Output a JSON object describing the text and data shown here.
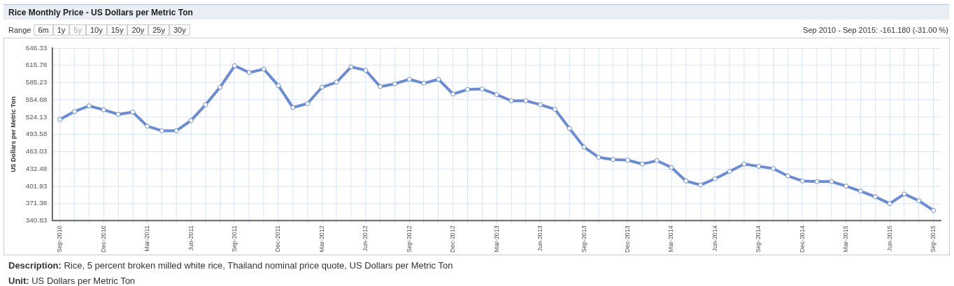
{
  "chart_data": {
    "type": "line",
    "title": "Rice Monthly Price - US Dollars per Metric Ton",
    "ylabel": "US Dollars per Metric Ton",
    "annotations": [
      "Range",
      "6m",
      "1y",
      "5y",
      "10y",
      "15y",
      "20y",
      "25y",
      "30y",
      "Sep 2010 - Sep 2015: -161.180 (-31.00 %)",
      "Description: Rice, 5 percent broken milled white rice, Thailand nominal price quote, US Dollars per Metric Ton",
      "Unit: US Dollars per Metric Ton"
    ],
    "categories": [
      "Sep-2010",
      null,
      null,
      "Dec-2010",
      null,
      null,
      "Mar-2011",
      null,
      null,
      "Jun-2011",
      null,
      null,
      "Sep-2011",
      null,
      null,
      "Dec-2011",
      null,
      null,
      "Mar-2012",
      null,
      null,
      "Jun-2012",
      null,
      null,
      "Sep-2012",
      null,
      null,
      "Dec-2012",
      null,
      null,
      "Mar-2013",
      null,
      null,
      "Jun-2013",
      null,
      null,
      "Sep-2013",
      null,
      null,
      "Dec-2013",
      null,
      null,
      "Mar-2014",
      null,
      null,
      "Jun-2014",
      null,
      null,
      "Sep-2014",
      null,
      null,
      "Dec-2014",
      null,
      null,
      "Mar-2015",
      null,
      null,
      "Jun-2015",
      null,
      null,
      "Sep-2015"
    ],
    "series": [
      {
        "color": "#6a8cd8",
        "values": [
          520,
          534,
          544,
          537,
          529,
          533,
          508,
          500,
          500,
          518,
          546,
          577,
          615,
          603,
          609,
          580,
          541,
          548,
          577,
          586,
          613,
          607,
          578,
          583,
          591,
          584,
          591,
          565,
          573,
          574,
          564,
          553,
          553,
          546,
          538,
          504,
          471,
          453,
          449,
          448,
          441,
          447,
          435,
          411,
          404,
          415,
          428,
          441,
          437,
          433,
          420,
          411,
          410,
          410,
          402,
          393,
          383,
          371,
          388,
          376,
          359
        ]
      }
    ],
    "ylim": [
      340.83,
      646.33
    ],
    "yticks": [
      340.83,
      371.38,
      401.93,
      432.48,
      463.03,
      493.58,
      524.13,
      554.68,
      585.23,
      615.78,
      646.33
    ],
    "grid": true,
    "legend": false,
    "marker": "circle",
    "line_style": "solid"
  }
}
